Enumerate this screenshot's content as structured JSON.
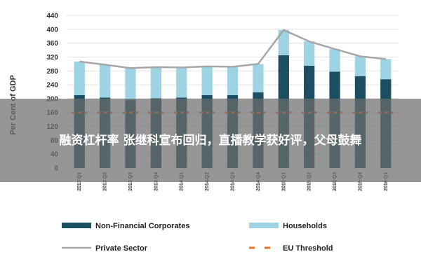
{
  "chart_data": {
    "type": "bar",
    "stacked": true,
    "ylabel": "Per Cent of GDP",
    "ylim": [
      0,
      440
    ],
    "yticks": [
      0,
      40,
      80,
      120,
      160,
      200,
      240,
      280,
      320,
      360,
      400,
      440
    ],
    "grid": true,
    "legend_position": "bottom",
    "categories": [
      "2013 Q1",
      "2013 Q2",
      "2013 Q3",
      "2013 Q4",
      "2014 Q1",
      "2014 Q2",
      "2014 Q3",
      "2014 Q4",
      "2015 Q1",
      "2015 Q2",
      "2015 Q3",
      "2015 Q4",
      "2016 Q1"
    ],
    "series": [
      {
        "name": "Non-Financial Corporates",
        "kind": "bar",
        "color": "#1b4f61",
        "values": [
          210,
          203,
          197,
          201,
          203,
          210,
          210,
          218,
          325,
          295,
          278,
          265,
          256
        ]
      },
      {
        "name": "Households",
        "kind": "bar",
        "color": "#9dd3e2",
        "values": [
          97,
          95,
          91,
          90,
          87,
          83,
          82,
          82,
          73,
          70,
          65,
          57,
          58
        ]
      },
      {
        "name": "Private Sector",
        "kind": "line",
        "color": "#a6a6a6",
        "values": [
          307,
          298,
          288,
          291,
          290,
          293,
          292,
          300,
          398,
          365,
          343,
          322,
          314
        ]
      },
      {
        "name": "EU Threshold",
        "kind": "dashed-line",
        "color": "#e8702a",
        "values": [
          160,
          160,
          160,
          160,
          160,
          160,
          160,
          160,
          160,
          160,
          160,
          160,
          160
        ]
      }
    ]
  },
  "overlay": {
    "headline": "融资杠杆率 张继科宣布回归，直播教学获好评，父母鼓舞"
  }
}
